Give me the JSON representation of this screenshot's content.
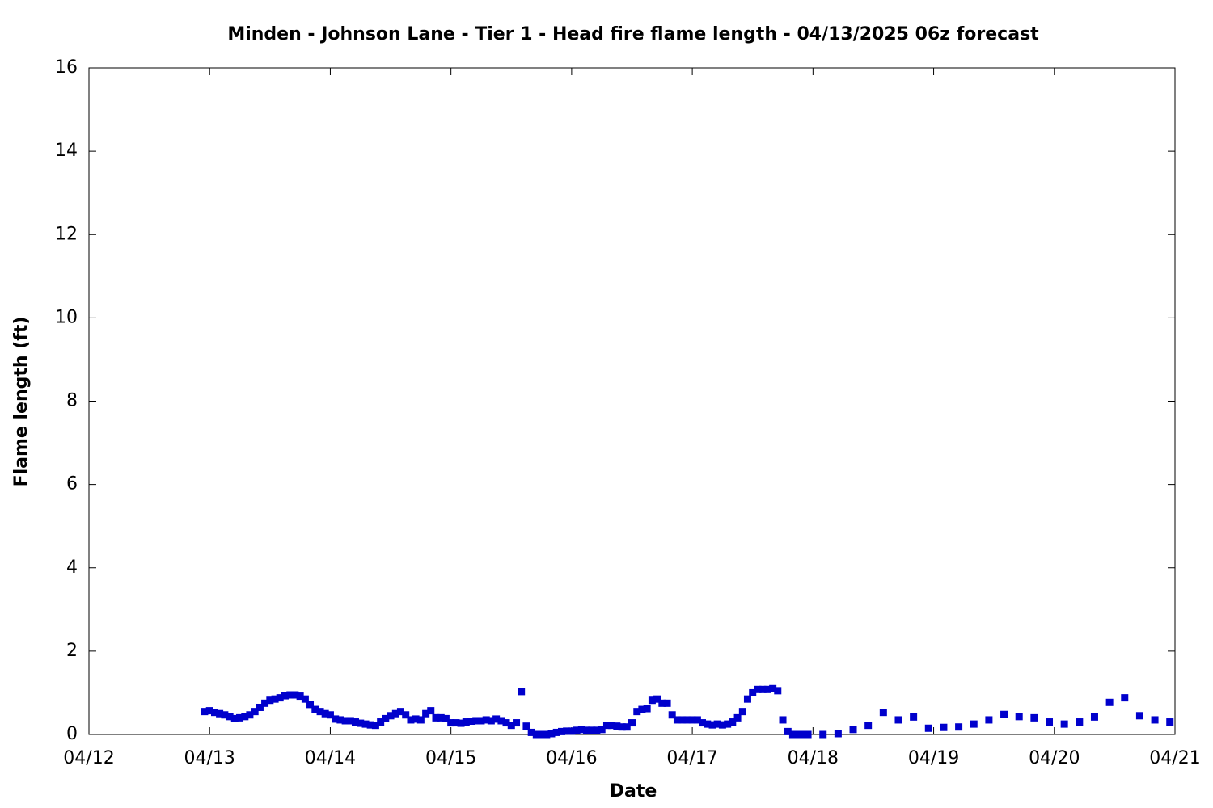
{
  "chart_data": {
    "type": "scatter",
    "title": "Minden - Johnson Lane - Tier 1 - Head fire flame length - 04/13/2025 06z forecast",
    "xlabel": "Date",
    "ylabel": "Flame length (ft)",
    "xlim": [
      12,
      21
    ],
    "xticks": [
      {
        "value": 12,
        "label": "04/12"
      },
      {
        "value": 13,
        "label": "04/13"
      },
      {
        "value": 14,
        "label": "04/14"
      },
      {
        "value": 15,
        "label": "04/15"
      },
      {
        "value": 16,
        "label": "04/16"
      },
      {
        "value": 17,
        "label": "04/17"
      },
      {
        "value": 18,
        "label": "04/18"
      },
      {
        "value": 19,
        "label": "04/19"
      },
      {
        "value": 20,
        "label": "04/20"
      },
      {
        "value": 21,
        "label": "04/21"
      }
    ],
    "ylim": [
      0,
      16
    ],
    "yticks": [
      0,
      2,
      4,
      6,
      8,
      10,
      12,
      14,
      16
    ],
    "series": [
      {
        "color": "#0000cc",
        "x": [
          12.958,
          13.0,
          13.042,
          13.083,
          13.125,
          13.167,
          13.208,
          13.25,
          13.292,
          13.333,
          13.375,
          13.417,
          13.458,
          13.5,
          13.542,
          13.583,
          13.625,
          13.667,
          13.708,
          13.75,
          13.792,
          13.833,
          13.875,
          13.917,
          13.958,
          14.0,
          14.042,
          14.083,
          14.125,
          14.167,
          14.208,
          14.25,
          14.292,
          14.333,
          14.375,
          14.417,
          14.458,
          14.5,
          14.542,
          14.583,
          14.625,
          14.667,
          14.708,
          14.75,
          14.792,
          14.833,
          14.875,
          14.917,
          14.958,
          15.0,
          15.042,
          15.083,
          15.125,
          15.167,
          15.208,
          15.25,
          15.292,
          15.333,
          15.375,
          15.417,
          15.458,
          15.5,
          15.542,
          15.583,
          15.625,
          15.667,
          15.708,
          15.75,
          15.792,
          15.833,
          15.875,
          15.917,
          15.958,
          16.0,
          16.042,
          16.083,
          16.125,
          16.167,
          16.208,
          16.25,
          16.292,
          16.333,
          16.375,
          16.417,
          16.458,
          16.5,
          16.542,
          16.583,
          16.625,
          16.667,
          16.708,
          16.75,
          16.792,
          16.833,
          16.875,
          16.917,
          16.958,
          17.0,
          17.042,
          17.083,
          17.125,
          17.167,
          17.208,
          17.25,
          17.292,
          17.333,
          17.375,
          17.417,
          17.458,
          17.5,
          17.542,
          17.583,
          17.625,
          17.667,
          17.708,
          17.75,
          17.792,
          17.833,
          17.875,
          17.917,
          17.958,
          18.083,
          18.208,
          18.333,
          18.458,
          18.583,
          18.708,
          18.833,
          18.958,
          19.083,
          19.208,
          19.333,
          19.458,
          19.583,
          19.708,
          19.833,
          19.958,
          20.083,
          20.208,
          20.333,
          20.458,
          20.583,
          20.708,
          20.833,
          20.958
        ],
        "values": [
          0.55,
          0.57,
          0.53,
          0.5,
          0.47,
          0.43,
          0.38,
          0.4,
          0.43,
          0.47,
          0.55,
          0.65,
          0.75,
          0.82,
          0.85,
          0.88,
          0.93,
          0.95,
          0.95,
          0.92,
          0.85,
          0.72,
          0.6,
          0.55,
          0.5,
          0.47,
          0.37,
          0.35,
          0.33,
          0.33,
          0.3,
          0.27,
          0.25,
          0.23,
          0.22,
          0.3,
          0.38,
          0.45,
          0.5,
          0.55,
          0.47,
          0.35,
          0.37,
          0.35,
          0.5,
          0.57,
          0.4,
          0.4,
          0.38,
          0.28,
          0.28,
          0.27,
          0.3,
          0.32,
          0.33,
          0.33,
          0.35,
          0.33,
          0.37,
          0.33,
          0.28,
          0.22,
          0.28,
          1.03,
          0.2,
          0.05,
          0.0,
          0.0,
          0.0,
          0.02,
          0.05,
          0.07,
          0.08,
          0.08,
          0.1,
          0.12,
          0.1,
          0.1,
          0.1,
          0.12,
          0.22,
          0.22,
          0.2,
          0.18,
          0.18,
          0.28,
          0.55,
          0.6,
          0.62,
          0.82,
          0.85,
          0.75,
          0.75,
          0.47,
          0.35,
          0.35,
          0.35,
          0.35,
          0.35,
          0.28,
          0.25,
          0.23,
          0.25,
          0.23,
          0.25,
          0.3,
          0.4,
          0.55,
          0.85,
          1.0,
          1.08,
          1.08,
          1.08,
          1.1,
          1.05,
          0.35,
          0.07,
          0.0,
          0.0,
          0.0,
          0.0,
          0.0,
          0.02,
          0.12,
          0.22,
          0.53,
          0.35,
          0.42,
          0.15,
          0.17,
          0.18,
          0.25,
          0.35,
          0.48,
          0.43,
          0.4,
          0.3,
          0.25,
          0.3,
          0.42,
          0.77,
          0.88,
          0.45,
          0.35,
          0.3
        ]
      }
    ]
  }
}
